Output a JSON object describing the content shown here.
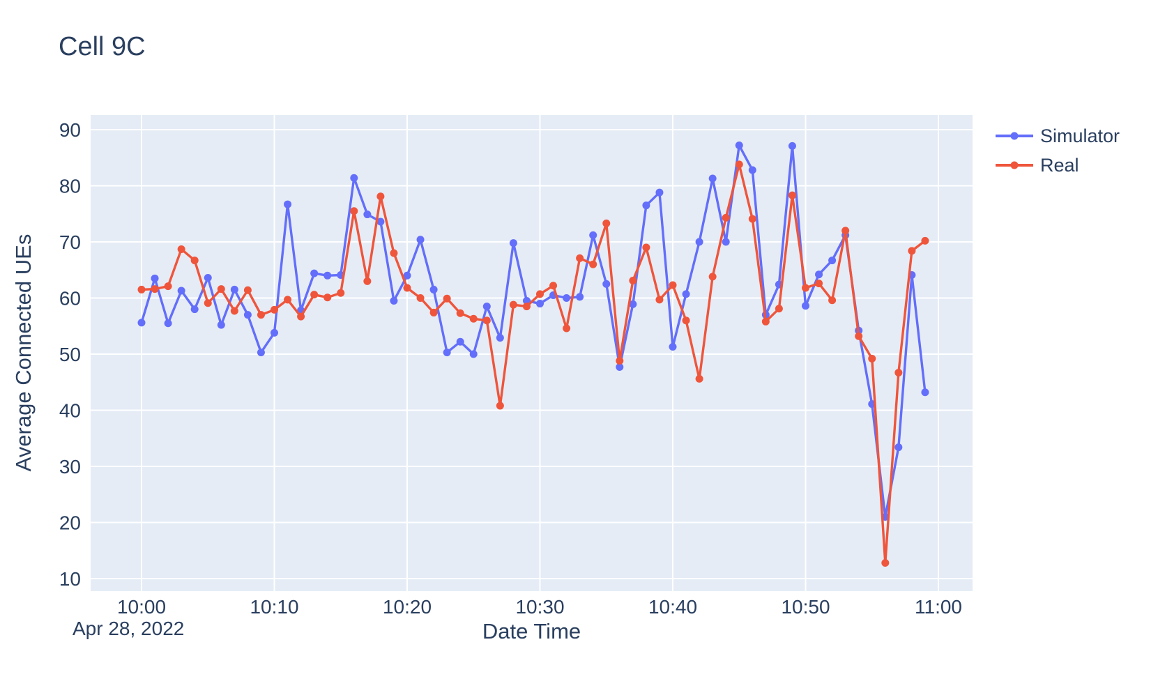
{
  "page": {
    "title": "Cell 9C"
  },
  "chart_data": {
    "type": "line",
    "title": "Cell 9C",
    "xlabel": "Date Time",
    "ylabel": "Average Connected UEs",
    "date_annotation": "Apr 28, 2022",
    "x": [
      "10:00",
      "10:01",
      "10:02",
      "10:03",
      "10:04",
      "10:05",
      "10:06",
      "10:07",
      "10:08",
      "10:09",
      "10:10",
      "10:11",
      "10:12",
      "10:13",
      "10:14",
      "10:15",
      "10:16",
      "10:17",
      "10:18",
      "10:19",
      "10:20",
      "10:21",
      "10:22",
      "10:23",
      "10:24",
      "10:25",
      "10:26",
      "10:27",
      "10:28",
      "10:29",
      "10:30",
      "10:31",
      "10:32",
      "10:33",
      "10:34",
      "10:35",
      "10:36",
      "10:37",
      "10:38",
      "10:39",
      "10:40",
      "10:41",
      "10:42",
      "10:43",
      "10:44",
      "10:45",
      "10:46",
      "10:47",
      "10:48",
      "10:49",
      "10:50",
      "10:51",
      "10:52",
      "10:53",
      "10:54",
      "10:55",
      "10:56",
      "10:57",
      "10:58",
      "10:59"
    ],
    "series": [
      {
        "name": "Simulator",
        "color": "#636EFA",
        "values": [
          55.6,
          63.5,
          55.5,
          61.3,
          58.0,
          63.6,
          55.2,
          61.5,
          57.0,
          50.3,
          53.8,
          76.7,
          57.8,
          64.4,
          64.0,
          64.1,
          81.4,
          74.9,
          73.6,
          59.5,
          64.0,
          70.4,
          61.5,
          50.3,
          52.2,
          50.0,
          58.5,
          52.9,
          69.8,
          59.5,
          59.0,
          60.5,
          60.0,
          60.2,
          71.2,
          62.5,
          47.7,
          58.9,
          76.5,
          78.8,
          51.3,
          60.7,
          70.0,
          81.3,
          70.0,
          87.2,
          82.8,
          57.0,
          62.4,
          87.1,
          58.6,
          64.2,
          66.7,
          71.2,
          54.2,
          41.1,
          21.0,
          33.4,
          64.1,
          43.2
        ]
      },
      {
        "name": "Real",
        "color": "#EF553B",
        "values": [
          61.5,
          61.6,
          62.1,
          68.7,
          66.7,
          59.1,
          61.6,
          57.7,
          61.4,
          57.0,
          57.9,
          59.7,
          56.7,
          60.6,
          60.1,
          60.9,
          75.5,
          63.0,
          78.1,
          68.0,
          61.8,
          60.0,
          57.4,
          59.9,
          57.3,
          56.3,
          56.0,
          40.8,
          58.8,
          58.5,
          60.7,
          62.2,
          54.6,
          67.1,
          66.0,
          73.3,
          48.8,
          63.1,
          69.0,
          59.7,
          62.3,
          56.0,
          45.6,
          63.8,
          74.3,
          83.8,
          74.1,
          55.8,
          58.1,
          78.3,
          61.8,
          62.6,
          59.6,
          72.0,
          53.2,
          49.2,
          12.8,
          46.7,
          68.4,
          70.2
        ]
      }
    ],
    "ylim": [
      10,
      90
    ],
    "yticks": [
      90,
      80,
      70,
      60,
      50,
      40,
      30,
      20,
      10
    ],
    "xticks": [
      "10:00",
      "10:10",
      "10:20",
      "10:30",
      "10:40",
      "10:50",
      "11:00"
    ],
    "grid": true,
    "legend_position": "top-right-outside",
    "plot_bg_color": "#E5ECF6",
    "grid_color": "#FFFFFF",
    "text_color": "#2A3F5F"
  },
  "legend": {
    "items": [
      {
        "label": "Simulator",
        "color": "#636EFA"
      },
      {
        "label": "Real",
        "color": "#EF553B"
      }
    ]
  }
}
